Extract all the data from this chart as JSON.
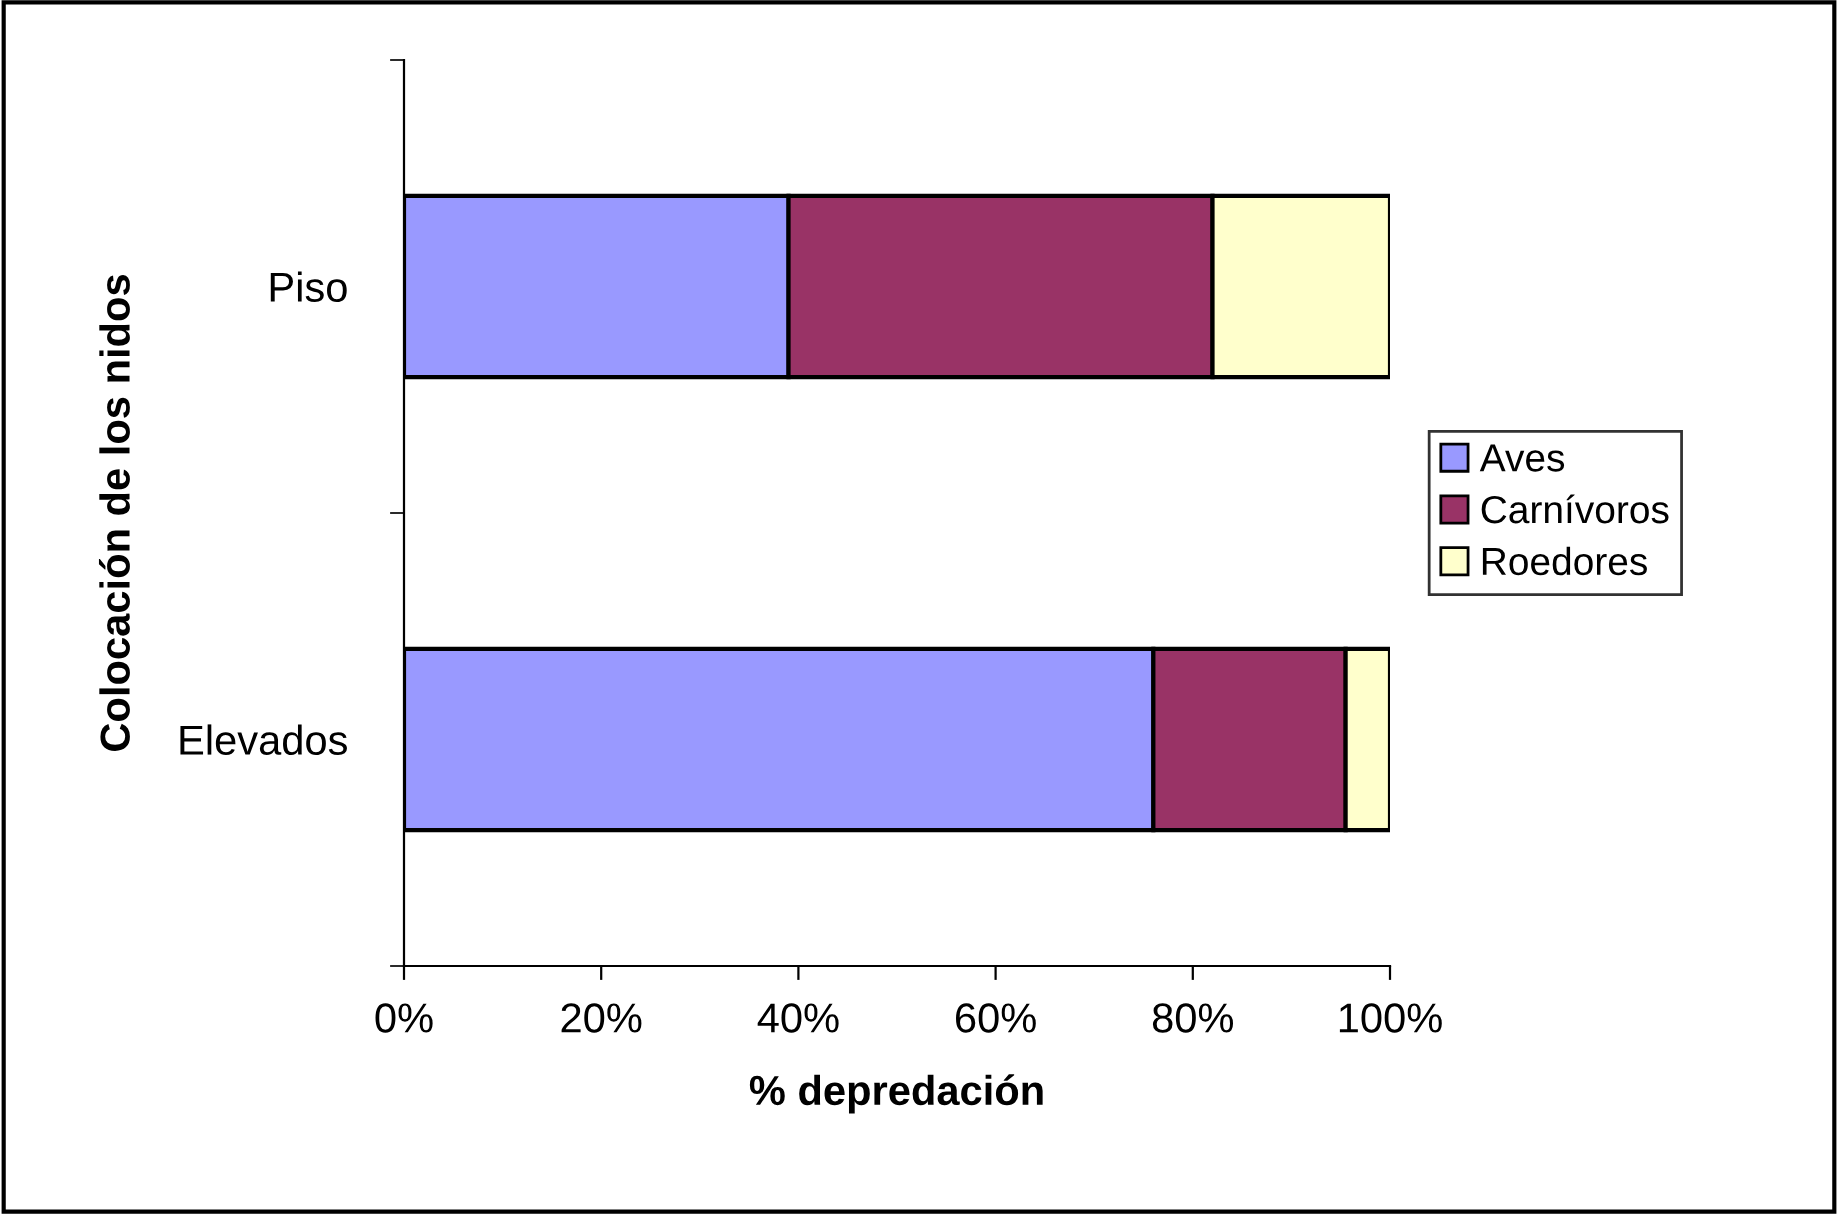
{
  "chart_data": {
    "type": "bar",
    "orientation": "horizontal",
    "stacked": true,
    "xlabel": "% depredación",
    "ylabel": "Colocación de los nidos",
    "categories": [
      "Piso",
      "Elevados"
    ],
    "series": [
      {
        "name": "Aves",
        "color": "#9999ff",
        "values": [
          39,
          76
        ]
      },
      {
        "name": "Carnívoros",
        "color": "#993366",
        "values": [
          43,
          19.5
        ]
      },
      {
        "name": "Roedores",
        "color": "#ffffcc",
        "values": [
          18,
          4.5
        ]
      }
    ],
    "xlim": [
      0,
      100
    ],
    "xticks": [
      {
        "value": 0,
        "label": "0%"
      },
      {
        "value": 20,
        "label": "20%"
      },
      {
        "value": 40,
        "label": "40%"
      },
      {
        "value": 60,
        "label": "60%"
      },
      {
        "value": 80,
        "label": "80%"
      },
      {
        "value": 100,
        "label": "100%"
      }
    ],
    "grid": false,
    "legend": "right"
  }
}
